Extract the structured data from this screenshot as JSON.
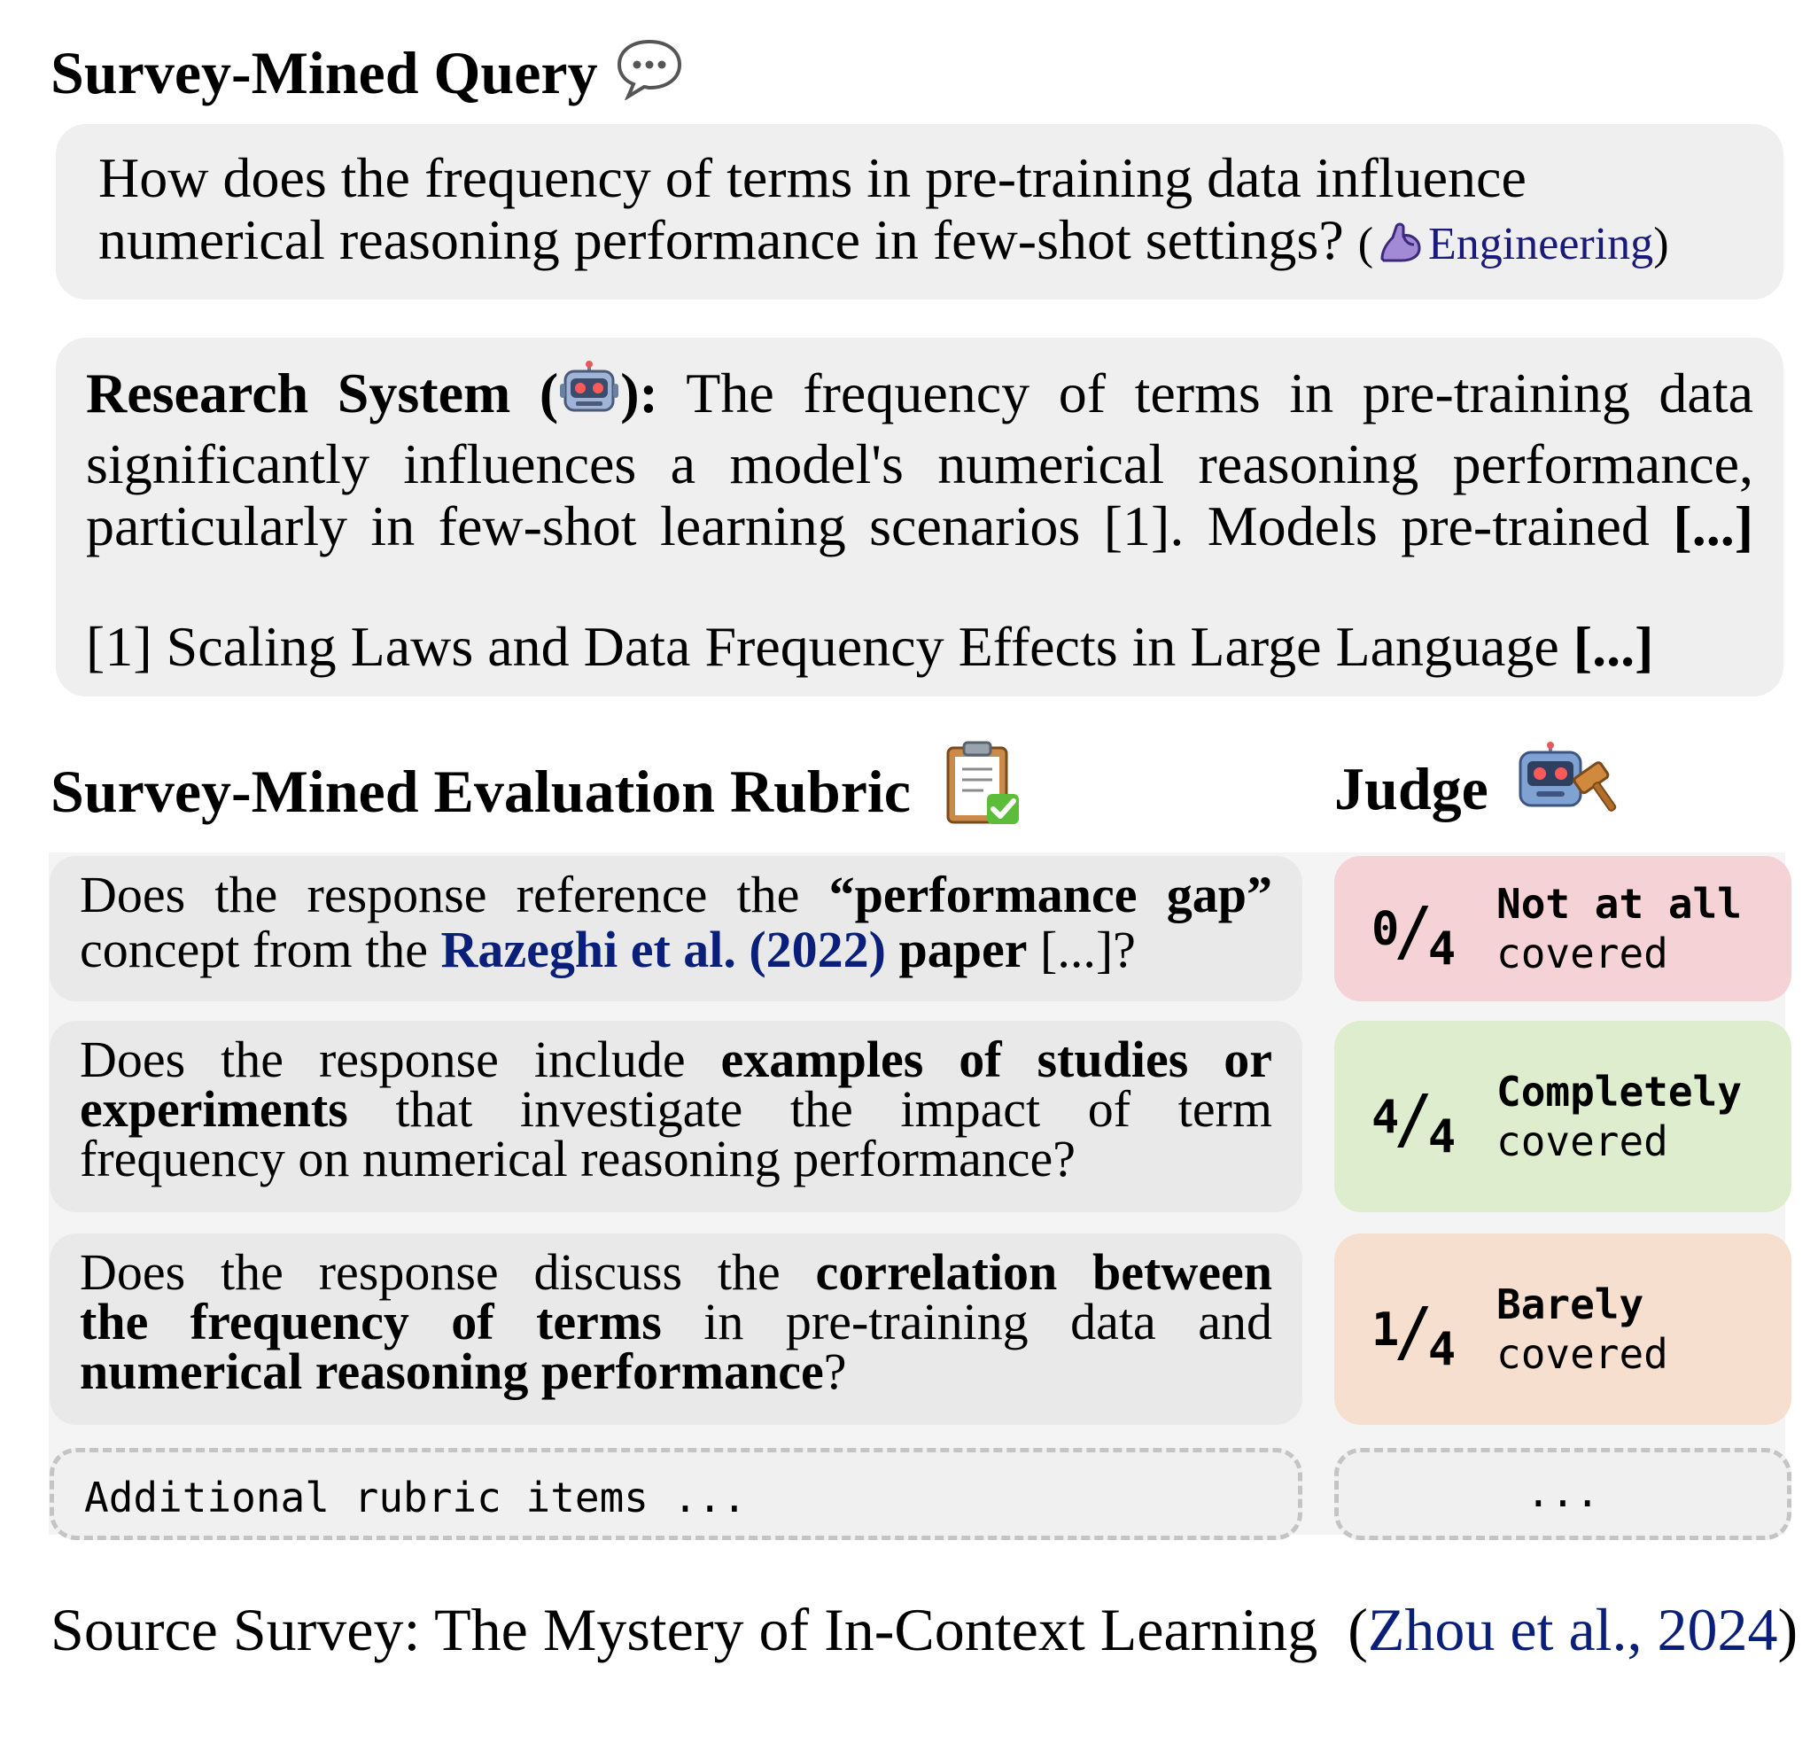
{
  "query_section": {
    "title": "Survey-Mined Query",
    "question_line1": "How does the frequency of terms in pre-training data influence",
    "question_line2": "numerical reasoning performance in few-shot settings?",
    "domain_open": "(",
    "domain_label": "Engineering",
    "domain_close": ")",
    "domain_icon": "flexed-arm-icon"
  },
  "response": {
    "label": "Research System (",
    "label_close": "):",
    "label_icon": "robot-icon",
    "line1": "The frequency of terms in pre-training data",
    "line2": "significantly influences a model's numerical reasoning performance,",
    "line3": "particularly in few-shot learning scenarios [1]. Models pre-trained",
    "ellipsis": "[...]",
    "reference": "[1] Scaling Laws and Data Frequency Effects in Large Language"
  },
  "rubric_section": {
    "title": "Survey-Mined Evaluation Rubric",
    "title_icon": "clipboard-check-icon",
    "judge_title": "Judge",
    "judge_icon": "robot-gavel-icon",
    "items": [
      {
        "l1_a": "Does the response reference the ",
        "l1_b": "“performance gap”",
        "l2_a": "concept from the ",
        "l2_cite": "Razeghi et al. (2022)",
        "l2_b": " paper",
        "l2_c": " [...]?",
        "score_num": "0",
        "score_den": "4",
        "verdict_strong": "Not at all",
        "verdict_weak": "covered",
        "color": "#f5d2d6"
      },
      {
        "l1_a": "Does the response include ",
        "l1_b": "examples of studies or",
        "l2_a": "experiments",
        "l2_b": " that investigate the impact of term",
        "l3": "frequency on numerical reasoning performance?",
        "score_num": "4",
        "score_den": "4",
        "verdict_strong": "Completely",
        "verdict_weak": "covered",
        "color": "#dfedcf"
      },
      {
        "l1_a": "Does the response discuss the ",
        "l1_b": "correlation between",
        "l2_a": "the frequency of terms",
        "l2_b": " in pre-training data and",
        "l3_a": "numerical reasoning performance",
        "l3_b": "?",
        "score_num": "1",
        "score_den": "4",
        "verdict_strong": "Barely",
        "verdict_weak": "covered",
        "color": "#f6dfcf"
      }
    ],
    "additional_label": "Additional rubric items ...",
    "additional_judge": "..."
  },
  "source": {
    "prefix": "Source Survey: The Mystery of In-Context Learning",
    "cite_open": "(",
    "cite": "Zhou et al., 2024",
    "cite_close": ")"
  }
}
